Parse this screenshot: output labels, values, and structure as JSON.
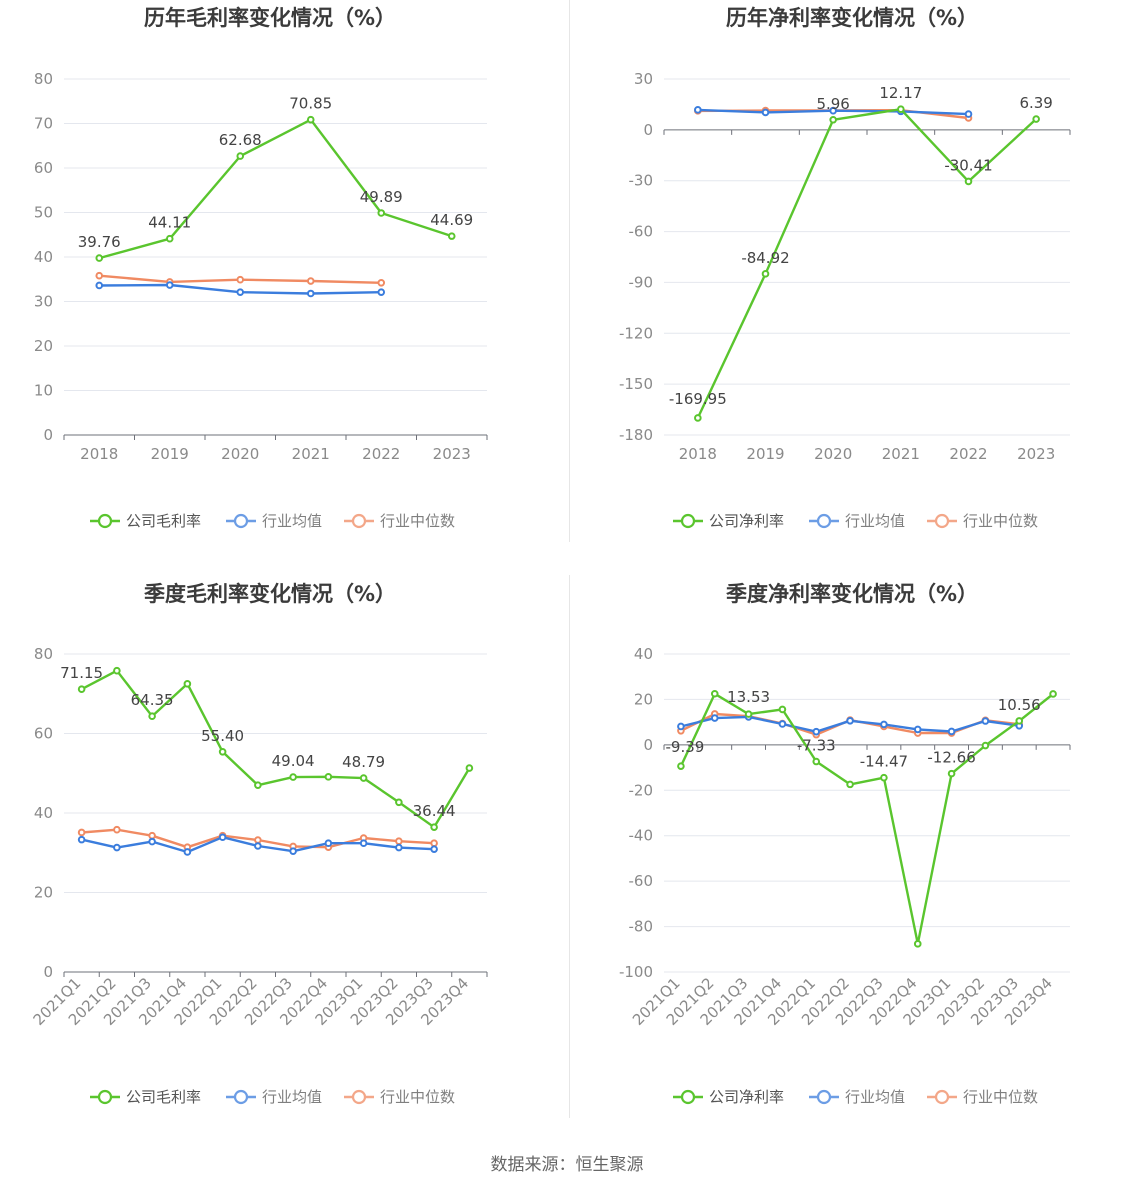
{
  "source_label": "数据来源：",
  "source_name": "恒生聚源",
  "colors": {
    "company": "#5ac52e",
    "industry_avg": "#3b7ddd",
    "industry_median": "#f08a62"
  },
  "chart_data": [
    {
      "type": "line",
      "title": "历年毛利率变化情况（%）",
      "categories": [
        "2018",
        "2019",
        "2020",
        "2021",
        "2022",
        "2023"
      ],
      "ylim": [
        0,
        80
      ],
      "yticks": [
        0,
        10,
        20,
        30,
        40,
        50,
        60,
        70,
        80
      ],
      "rotate_x": false,
      "series": [
        {
          "name": "公司毛利率",
          "key": "company",
          "values": [
            39.76,
            44.11,
            62.68,
            70.85,
            49.89,
            44.69
          ]
        },
        {
          "name": "行业均值",
          "key": "industry_avg",
          "values": [
            33.6,
            33.7,
            32.1,
            31.8,
            32.1,
            null
          ]
        },
        {
          "name": "行业中位数",
          "key": "industry_median",
          "values": [
            35.8,
            34.4,
            34.9,
            34.6,
            34.2,
            null
          ]
        }
      ],
      "data_labels": [
        "39.76",
        "44.11",
        "62.68",
        "70.85",
        "49.89",
        "44.69"
      ]
    },
    {
      "type": "line",
      "title": "历年净利率变化情况（%）",
      "categories": [
        "2018",
        "2019",
        "2020",
        "2021",
        "2022",
        "2023"
      ],
      "ylim": [
        -180,
        30
      ],
      "yticks": [
        -180,
        -150,
        -120,
        -90,
        -60,
        -30,
        0,
        30
      ],
      "rotate_x": false,
      "series": [
        {
          "name": "公司净利率",
          "key": "company",
          "values": [
            -169.95,
            -84.92,
            5.96,
            12.17,
            -30.41,
            6.39
          ]
        },
        {
          "name": "行业均值",
          "key": "industry_avg",
          "values": [
            11.8,
            10.3,
            11.3,
            10.9,
            9.3,
            null
          ]
        },
        {
          "name": "行业中位数",
          "key": "industry_median",
          "values": [
            11.2,
            11.4,
            11.4,
            11.6,
            7.0,
            null
          ]
        }
      ],
      "data_labels": [
        "-169.95",
        "-84.92",
        "5.96",
        "12.17",
        "-30.41",
        "6.39"
      ]
    },
    {
      "type": "line",
      "title": "季度毛利率变化情况（%）",
      "categories": [
        "2021Q1",
        "2021Q2",
        "2021Q3",
        "2021Q4",
        "2022Q1",
        "2022Q2",
        "2022Q3",
        "2022Q4",
        "2023Q1",
        "2023Q2",
        "2023Q3",
        "2023Q4"
      ],
      "ylim": [
        0,
        80
      ],
      "yticks": [
        0,
        20,
        40,
        60,
        80
      ],
      "rotate_x": true,
      "series": [
        {
          "name": "公司毛利率",
          "key": "company",
          "values": [
            71.15,
            75.8,
            64.35,
            72.5,
            55.4,
            47.0,
            49.04,
            49.1,
            48.79,
            42.7,
            36.44,
            51.3
          ]
        },
        {
          "name": "行业均值",
          "key": "industry_avg",
          "values": [
            33.3,
            31.3,
            32.8,
            30.2,
            33.9,
            31.7,
            30.4,
            32.4,
            32.4,
            31.3,
            30.9,
            null
          ]
        },
        {
          "name": "行业中位数",
          "key": "industry_median",
          "values": [
            35.1,
            35.8,
            34.3,
            31.4,
            34.3,
            33.2,
            31.6,
            31.4,
            33.7,
            32.9,
            32.4,
            null
          ]
        }
      ],
      "data_labels": [
        "71.15",
        "",
        "64.35",
        "",
        "55.40",
        "",
        "49.04",
        "",
        "48.79",
        "",
        "36.44",
        ""
      ]
    },
    {
      "type": "line",
      "title": "季度净利率变化情况（%）",
      "categories": [
        "2021Q1",
        "2021Q2",
        "2021Q3",
        "2021Q4",
        "2022Q1",
        "2022Q2",
        "2022Q3",
        "2022Q4",
        "2023Q1",
        "2023Q2",
        "2023Q3",
        "2023Q4"
      ],
      "ylim": [
        -100,
        40
      ],
      "yticks": [
        -100,
        -80,
        -60,
        -40,
        -20,
        0,
        20,
        40
      ],
      "rotate_x": true,
      "series": [
        {
          "name": "公司净利率",
          "key": "company",
          "values": [
            -9.39,
            22.5,
            13.53,
            15.6,
            -7.33,
            -17.4,
            -14.47,
            -87.6,
            -12.66,
            -0.3,
            10.56,
            22.4
          ]
        },
        {
          "name": "行业均值",
          "key": "industry_avg",
          "values": [
            8.1,
            11.8,
            12.3,
            9.2,
            5.8,
            10.6,
            9.0,
            6.8,
            5.9,
            10.5,
            8.4,
            null
          ]
        },
        {
          "name": "行业中位数",
          "key": "industry_median",
          "values": [
            6.2,
            13.6,
            12.6,
            9.4,
            4.5,
            10.9,
            8.1,
            5.2,
            5.2,
            10.8,
            9.1,
            null
          ]
        }
      ],
      "data_labels": [
        "-9.39",
        "",
        "13.53",
        "",
        "-7.33",
        "",
        "-14.47",
        "",
        "-12.66",
        "",
        "10.56",
        ""
      ]
    }
  ]
}
